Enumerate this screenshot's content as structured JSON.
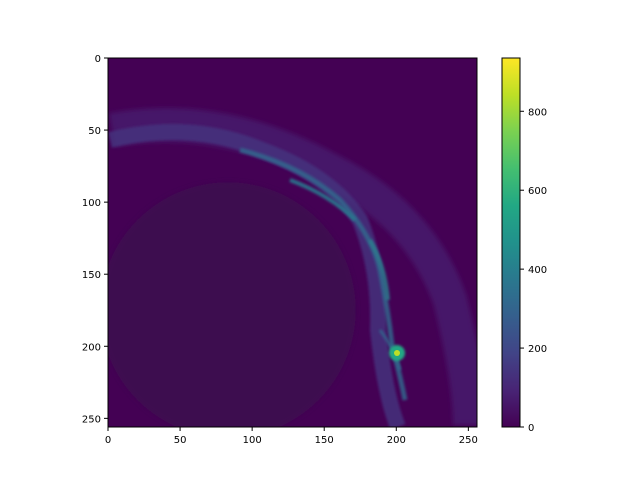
{
  "chart_data": {
    "type": "heatmap",
    "title": "",
    "xlabel": "",
    "ylabel": "",
    "x_range": [
      0,
      256
    ],
    "y_range": [
      0,
      256
    ],
    "y_inverted": true,
    "x_ticks": [
      "0",
      "50",
      "100",
      "150",
      "200",
      "250"
    ],
    "y_ticks": [
      "0",
      "50",
      "100",
      "150",
      "200",
      "250"
    ],
    "colorbar": {
      "colormap": "viridis",
      "range": [
        0,
        935
      ],
      "ticks": [
        "0",
        "200",
        "400",
        "600",
        "800"
      ]
    },
    "features": {
      "boundary_arc_center": [
        85,
        175
      ],
      "boundary_arc_radius": 85,
      "bright_spot": [
        200,
        205
      ],
      "peak_value": 935
    }
  }
}
